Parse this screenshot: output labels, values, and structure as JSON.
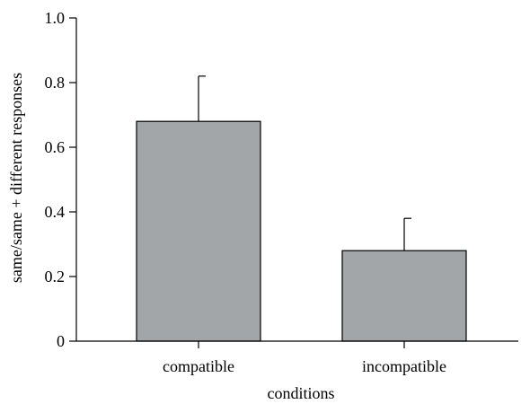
{
  "chart_data": {
    "type": "bar",
    "title": "",
    "xlabel": "conditions",
    "ylabel": "same/same + different responses",
    "categories": [
      "compatible",
      "incompatible"
    ],
    "values": [
      0.68,
      0.28
    ],
    "error_upper": [
      0.82,
      0.38
    ],
    "ylim": [
      0,
      1.0
    ],
    "yticks": [
      0,
      0.2,
      0.4,
      0.6,
      0.8,
      1.0
    ],
    "ytick_labels": [
      "0",
      "0.2",
      "0.4",
      "0.6",
      "0.8",
      "1.0"
    ],
    "grid": false,
    "legend": "none",
    "bar_color": "#a3a6a8",
    "axis_color": "#000000"
  }
}
